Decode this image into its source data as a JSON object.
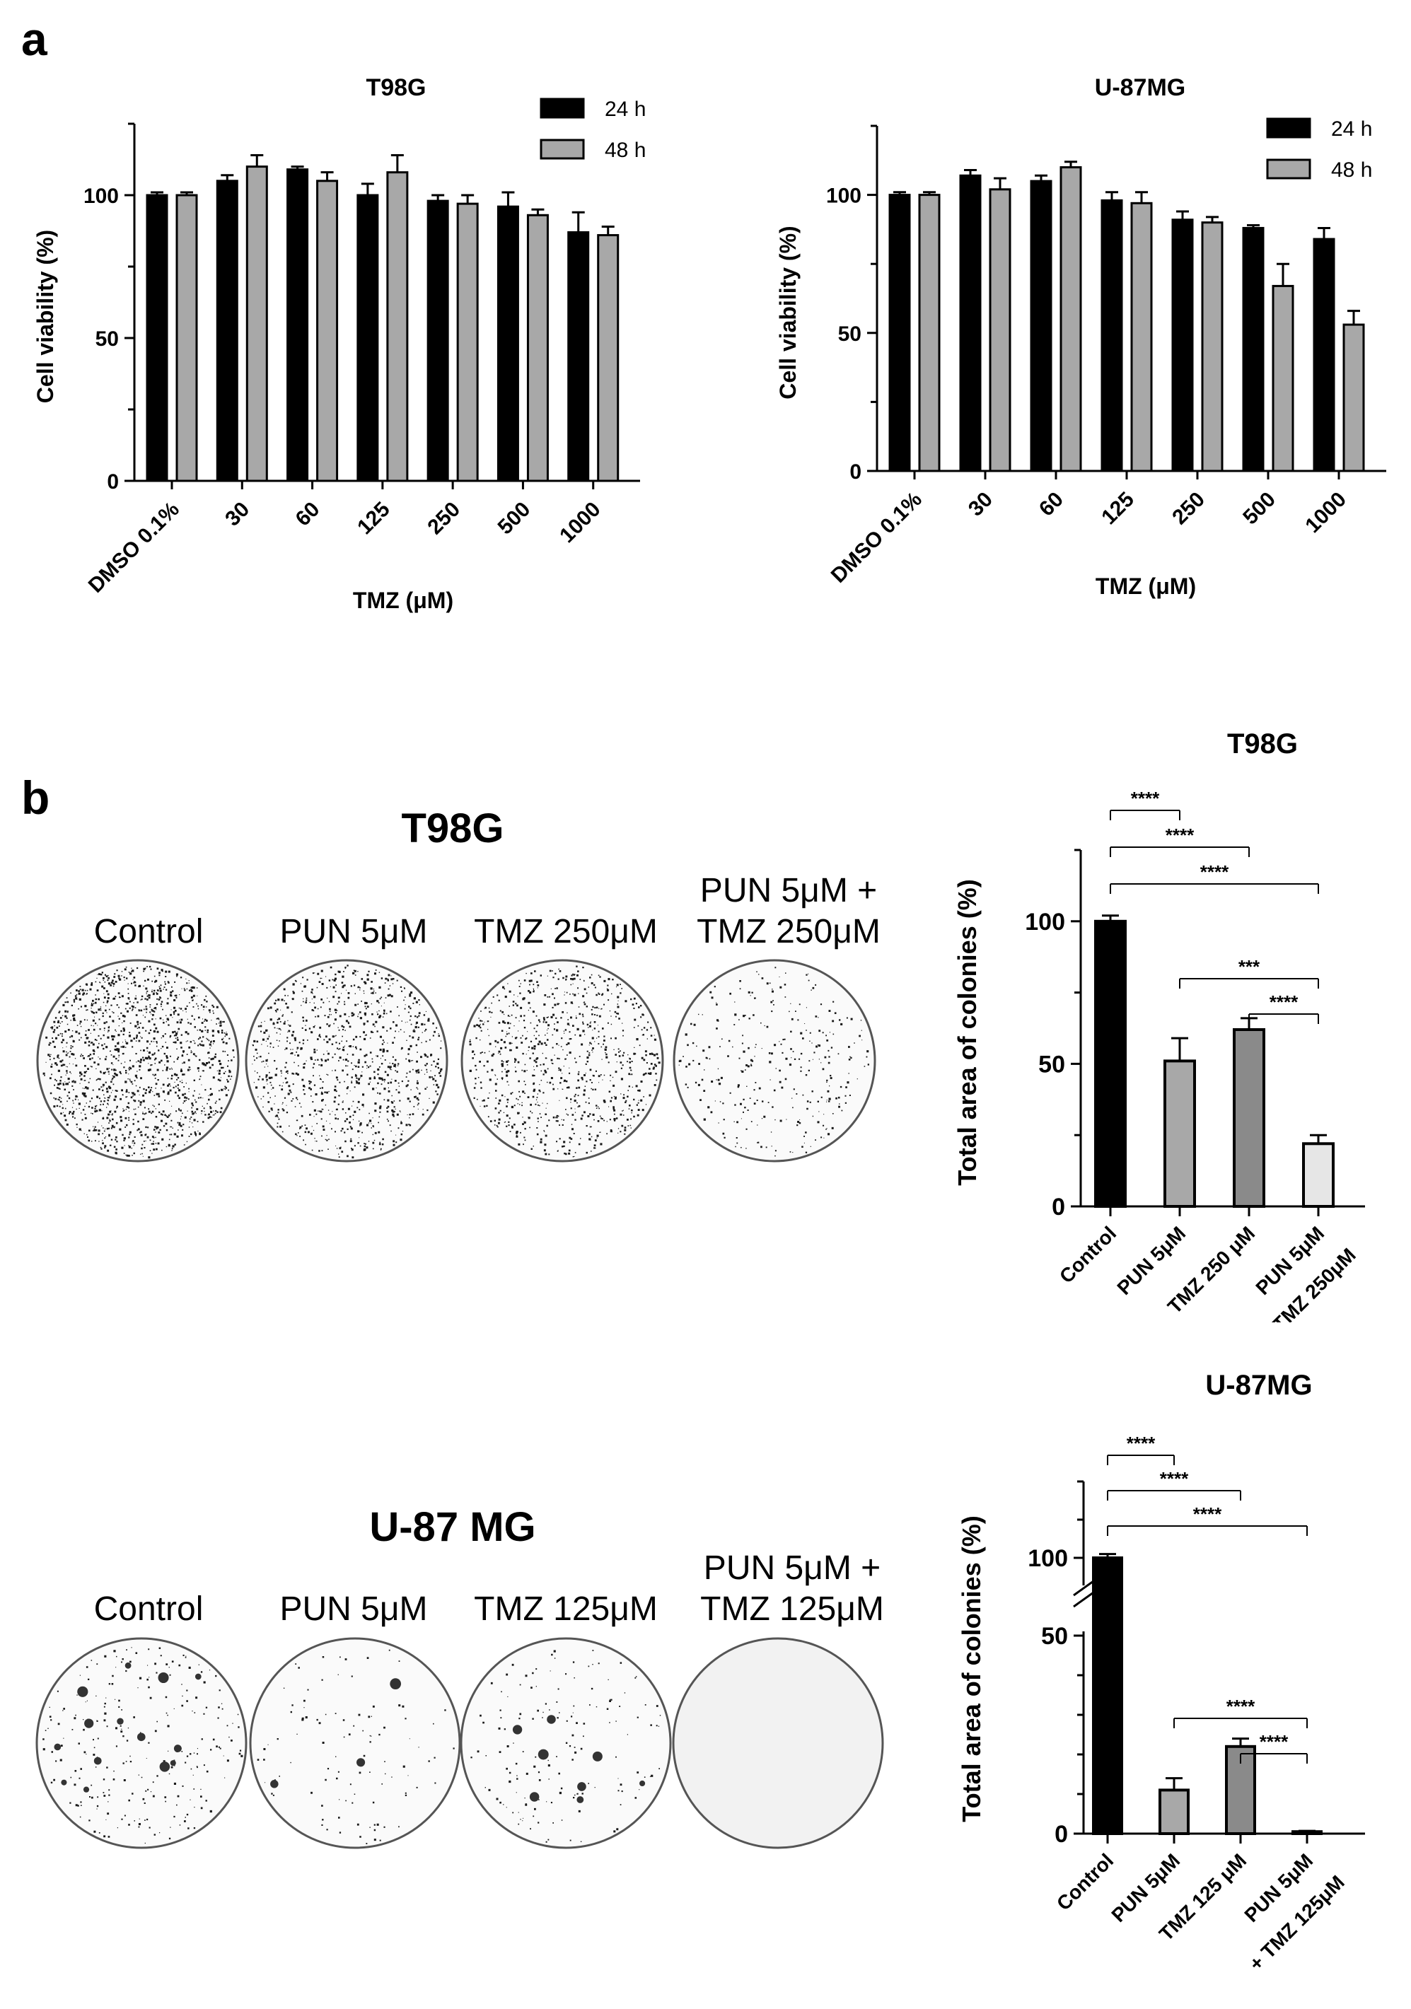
{
  "panel_labels": {
    "a": "a",
    "b": "b"
  },
  "dishes": {
    "t98g": {
      "title": "T98G",
      "labels": [
        "Control",
        "PUN 5μM",
        "TMZ 250μM"
      ],
      "label_combo": [
        "PUN 5μM +",
        "TMZ 250μM"
      ],
      "densities": [
        0.55,
        0.38,
        0.34,
        0.12
      ]
    },
    "u87": {
      "title": "U-87 MG",
      "labels": [
        "Control",
        "PUN 5μM",
        "TMZ 125μM"
      ],
      "label_combo": [
        "PUN 5μM +",
        "TMZ 125μM"
      ],
      "densities": [
        0.1,
        0.04,
        0.06,
        0.0
      ]
    }
  },
  "colors": {
    "black": "#000000",
    "gray": "#a8a8a8",
    "dark_gray": "#8a8a8a",
    "light_gray": "#e6e6e6"
  },
  "chart_data": [
    {
      "id": "a-t98g",
      "type": "bar",
      "title": "T98G",
      "xlabel": "TMZ (μM)",
      "ylabel": "Cell viability  (%)",
      "categories": [
        "DMSO 0.1%",
        "30",
        "60",
        "125",
        "250",
        "500",
        "1000"
      ],
      "ylim": [
        0,
        125
      ],
      "yticks": [
        0,
        50,
        100
      ],
      "legend_position": "top-right",
      "series": [
        {
          "name": "24 h",
          "color": "#000000",
          "values": [
            100,
            105,
            109,
            100,
            98,
            96,
            87
          ],
          "errors": [
            1,
            2,
            1,
            4,
            2,
            5,
            7
          ]
        },
        {
          "name": "48 h",
          "color": "#a8a8a8",
          "values": [
            100,
            110,
            105,
            108,
            97,
            93,
            86
          ],
          "errors": [
            1,
            4,
            3,
            6,
            3,
            2,
            3
          ]
        }
      ]
    },
    {
      "id": "a-u87",
      "type": "bar",
      "title": "U-87MG",
      "xlabel": "TMZ (μM)",
      "ylabel": "Cell viability  (%)",
      "categories": [
        "DMSO 0.1%",
        "30",
        "60",
        "125",
        "250",
        "500",
        "1000"
      ],
      "ylim": [
        0,
        125
      ],
      "yticks": [
        0,
        50,
        100
      ],
      "legend_position": "top-right",
      "series": [
        {
          "name": "24 h",
          "color": "#000000",
          "values": [
            100,
            107,
            105,
            98,
            91,
            88,
            84
          ],
          "errors": [
            1,
            2,
            2,
            3,
            3,
            1,
            4
          ]
        },
        {
          "name": "48 h",
          "color": "#a8a8a8",
          "values": [
            100,
            102,
            110,
            97,
            90,
            67,
            53
          ],
          "errors": [
            1,
            4,
            2,
            4,
            2,
            8,
            5
          ]
        }
      ]
    },
    {
      "id": "b-t98g",
      "type": "bar",
      "title": "T98G",
      "ylabel": "Total area of colonies (%)",
      "categories": [
        "Control",
        "PUN 5μM",
        "TMZ 250 μM",
        "PUN 5μM\n+ TMZ 250μM"
      ],
      "values": [
        100,
        51,
        62,
        22
      ],
      "errors": [
        2,
        8,
        4,
        3
      ],
      "colors": [
        "#000000",
        "#a8a8a8",
        "#8a8a8a",
        "#e6e6e6"
      ],
      "ylim": [
        0,
        125
      ],
      "yticks": [
        0,
        50,
        100
      ],
      "significance": [
        {
          "from": 0,
          "to": 1,
          "label": "****"
        },
        {
          "from": 0,
          "to": 2,
          "label": "****"
        },
        {
          "from": 0,
          "to": 3,
          "label": "****"
        },
        {
          "from": 1,
          "to": 3,
          "label": "***"
        },
        {
          "from": 2,
          "to": 3,
          "label": "****"
        }
      ]
    },
    {
      "id": "b-u87",
      "type": "bar",
      "title": "U-87MG",
      "ylabel": "Total area of colonies (%)",
      "categories": [
        "Control",
        "PUN 5μM",
        "TMZ 125 μM",
        "PUN 5μM\n+ TMZ 125μM"
      ],
      "values": [
        100,
        11,
        22,
        0.5
      ],
      "errors": [
        1,
        3,
        2,
        0.2
      ],
      "colors": [
        "#000000",
        "#a8a8a8",
        "#8a8a8a",
        "#e6e6e6"
      ],
      "axis_break": [
        50,
        95
      ],
      "ylim": [
        0,
        120
      ],
      "yticks": [
        0,
        50,
        100
      ],
      "significance": [
        {
          "from": 0,
          "to": 1,
          "label": "****"
        },
        {
          "from": 0,
          "to": 2,
          "label": "****"
        },
        {
          "from": 0,
          "to": 3,
          "label": "****"
        },
        {
          "from": 1,
          "to": 3,
          "label": "****"
        },
        {
          "from": 2,
          "to": 3,
          "label": "****"
        }
      ]
    }
  ]
}
